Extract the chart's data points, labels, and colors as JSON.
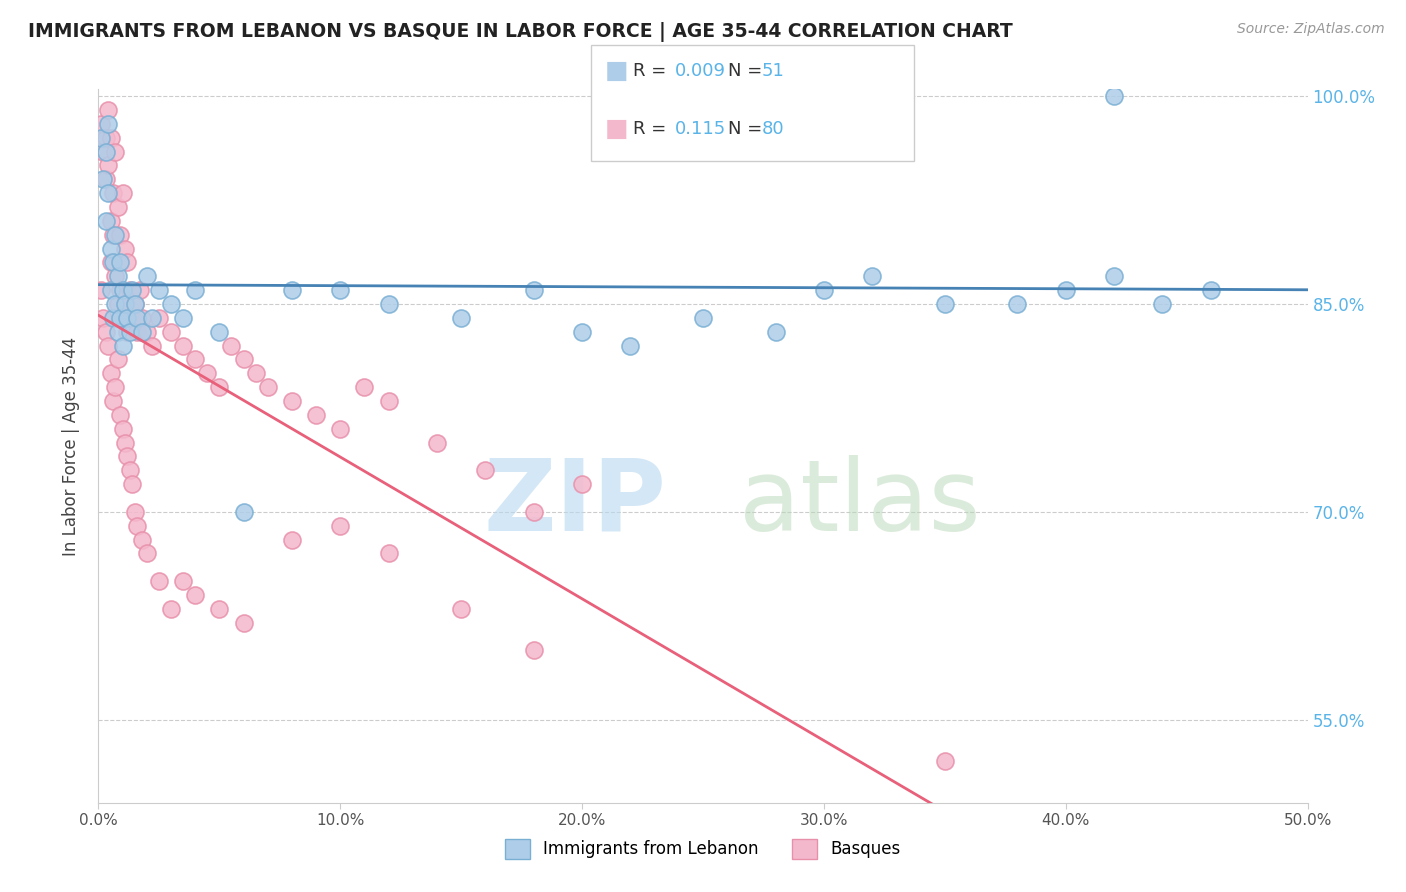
{
  "title": "IMMIGRANTS FROM LEBANON VS BASQUE IN LABOR FORCE | AGE 35-44 CORRELATION CHART",
  "source": "Source: ZipAtlas.com",
  "ylabel": "In Labor Force | Age 35-44",
  "xlim": [
    0.0,
    0.5
  ],
  "ylim": [
    0.49,
    1.005
  ],
  "xticks": [
    0.0,
    0.1,
    0.2,
    0.3,
    0.4,
    0.5
  ],
  "xtick_labels": [
    "0.0%",
    "10.0%",
    "20.0%",
    "30.0%",
    "40.0%",
    "50.0%"
  ],
  "right_yticks": [
    0.55,
    0.7,
    0.85,
    1.0
  ],
  "right_ytick_labels": [
    "55.0%",
    "70.0%",
    "85.0%",
    "100.0%"
  ],
  "lebanon_color": "#aecde8",
  "basque_color": "#f4b8cc",
  "lebanon_edge": "#7aafd4",
  "basque_edge": "#e890aa",
  "trendline_lebanon_color": "#4682b4",
  "trendline_basque_color": "#e8607a",
  "trendline_basque_dashed_color": "#c8a0a8",
  "R_lebanon": 0.009,
  "N_lebanon": 51,
  "R_basque": 0.115,
  "N_basque": 80,
  "legend_entries": [
    "Immigrants from Lebanon",
    "Basques"
  ],
  "lebanon_x": [
    0.001,
    0.002,
    0.003,
    0.003,
    0.004,
    0.004,
    0.005,
    0.005,
    0.006,
    0.006,
    0.007,
    0.007,
    0.008,
    0.008,
    0.009,
    0.009,
    0.01,
    0.01,
    0.011,
    0.012,
    0.013,
    0.014,
    0.015,
    0.016,
    0.018,
    0.02,
    0.022,
    0.025,
    0.03,
    0.035,
    0.04,
    0.05,
    0.06,
    0.08,
    0.1,
    0.12,
    0.15,
    0.18,
    0.2,
    0.22,
    0.25,
    0.28,
    0.3,
    0.32,
    0.35,
    0.38,
    0.4,
    0.42,
    0.44,
    0.46,
    0.42
  ],
  "lebanon_y": [
    0.97,
    0.94,
    0.96,
    0.91,
    0.98,
    0.93,
    0.89,
    0.86,
    0.88,
    0.84,
    0.9,
    0.85,
    0.87,
    0.83,
    0.88,
    0.84,
    0.86,
    0.82,
    0.85,
    0.84,
    0.83,
    0.86,
    0.85,
    0.84,
    0.83,
    0.87,
    0.84,
    0.86,
    0.85,
    0.84,
    0.86,
    0.83,
    0.7,
    0.86,
    0.86,
    0.85,
    0.84,
    0.86,
    0.83,
    0.82,
    0.84,
    0.83,
    0.86,
    0.87,
    0.85,
    0.85,
    0.86,
    0.87,
    0.85,
    0.86,
    1.0
  ],
  "basque_x": [
    0.001,
    0.002,
    0.003,
    0.003,
    0.004,
    0.004,
    0.005,
    0.005,
    0.005,
    0.006,
    0.006,
    0.007,
    0.007,
    0.008,
    0.008,
    0.009,
    0.009,
    0.01,
    0.01,
    0.011,
    0.011,
    0.012,
    0.012,
    0.013,
    0.014,
    0.015,
    0.016,
    0.017,
    0.018,
    0.02,
    0.022,
    0.025,
    0.03,
    0.035,
    0.04,
    0.045,
    0.05,
    0.055,
    0.06,
    0.065,
    0.07,
    0.08,
    0.09,
    0.1,
    0.11,
    0.12,
    0.14,
    0.16,
    0.18,
    0.2,
    0.001,
    0.002,
    0.003,
    0.004,
    0.005,
    0.006,
    0.007,
    0.008,
    0.009,
    0.01,
    0.011,
    0.012,
    0.013,
    0.014,
    0.015,
    0.016,
    0.018,
    0.02,
    0.025,
    0.03,
    0.035,
    0.04,
    0.05,
    0.06,
    0.08,
    0.1,
    0.12,
    0.15,
    0.18,
    0.35
  ],
  "basque_y": [
    0.98,
    0.96,
    0.97,
    0.94,
    0.99,
    0.95,
    0.91,
    0.97,
    0.88,
    0.93,
    0.9,
    0.96,
    0.87,
    0.92,
    0.85,
    0.9,
    0.86,
    0.93,
    0.84,
    0.89,
    0.85,
    0.88,
    0.83,
    0.86,
    0.84,
    0.85,
    0.83,
    0.86,
    0.84,
    0.83,
    0.82,
    0.84,
    0.83,
    0.82,
    0.81,
    0.8,
    0.79,
    0.82,
    0.81,
    0.8,
    0.79,
    0.78,
    0.77,
    0.76,
    0.79,
    0.78,
    0.75,
    0.73,
    0.7,
    0.72,
    0.86,
    0.84,
    0.83,
    0.82,
    0.8,
    0.78,
    0.79,
    0.81,
    0.77,
    0.76,
    0.75,
    0.74,
    0.73,
    0.72,
    0.7,
    0.69,
    0.68,
    0.67,
    0.65,
    0.63,
    0.65,
    0.64,
    0.63,
    0.62,
    0.68,
    0.69,
    0.67,
    0.63,
    0.6,
    0.52
  ]
}
